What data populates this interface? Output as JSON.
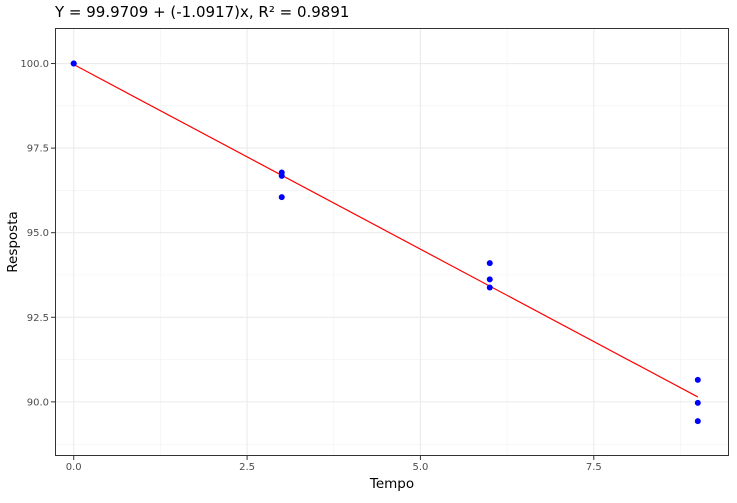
{
  "chart_data": {
    "type": "scatter",
    "title": "Y = 99.9709 + (-1.0917)x, R² = 0.9891",
    "xlabel": "Tempo",
    "ylabel": "Resposta",
    "xlim": [
      -0.27,
      9.45
    ],
    "ylim": [
      88.4,
      101.05
    ],
    "x_ticks": [
      0,
      2.5,
      5,
      7.5
    ],
    "x_tick_labels": [
      "0.0",
      "2.5",
      "5.0",
      "7.5"
    ],
    "y_ticks": [
      90,
      92.5,
      95,
      97.5,
      100
    ],
    "y_tick_labels": [
      "90.0",
      "92.5",
      "95.0",
      "97.5",
      "100.0"
    ],
    "grid": true,
    "series": [
      {
        "type": "scatter",
        "color": "#0000ff",
        "points": [
          {
            "x": 0,
            "y": 100.0
          },
          {
            "x": 0,
            "y": 100.0
          },
          {
            "x": 3,
            "y": 96.78
          },
          {
            "x": 3,
            "y": 96.68
          },
          {
            "x": 3,
            "y": 96.05
          },
          {
            "x": 6,
            "y": 94.1
          },
          {
            "x": 6,
            "y": 93.62
          },
          {
            "x": 6,
            "y": 93.38
          },
          {
            "x": 9,
            "y": 90.65
          },
          {
            "x": 9,
            "y": 89.97
          },
          {
            "x": 9,
            "y": 89.43
          }
        ]
      },
      {
        "type": "line",
        "color": "#ff0000",
        "intercept": 99.9709,
        "slope": -1.0917,
        "x_range": [
          0,
          9
        ]
      }
    ]
  }
}
